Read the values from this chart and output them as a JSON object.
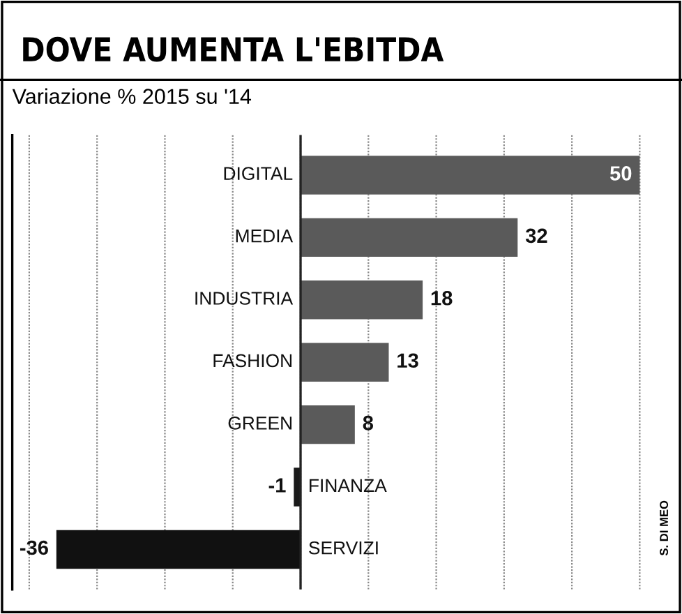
{
  "chart_data": {
    "type": "bar",
    "orientation": "horizontal",
    "title": "DOVE AUMENTA L'EBITDA",
    "subtitle": "Variazione % 2015 su '14",
    "categories": [
      "DIGITAL",
      "MEDIA",
      "INDUSTRIA",
      "FASHION",
      "GREEN",
      "FINANZA",
      "SERVIZI"
    ],
    "values": [
      50,
      32,
      18,
      13,
      8,
      -1,
      -36
    ],
    "colors": [
      "#5a5a5a",
      "#5a5a5a",
      "#5a5a5a",
      "#5a5a5a",
      "#5a5a5a",
      "#1a1a1a",
      "#111111"
    ],
    "xlim": [
      -42.5,
      50.5
    ],
    "xticks": [
      {
        "value": -40,
        "label": null
      },
      {
        "value": -30,
        "label": null
      },
      {
        "value": -20,
        "label": null
      },
      {
        "value": -10,
        "label": null
      },
      {
        "value": 0,
        "label": null
      },
      {
        "value": 10,
        "label": null
      },
      {
        "value": 20,
        "label": null
      },
      {
        "value": 30,
        "label": null
      },
      {
        "value": 40,
        "label": null
      },
      {
        "value": 50,
        "label": null
      }
    ],
    "grid": "x",
    "data_labels": true,
    "annotations": [
      "S. DI MEO"
    ]
  }
}
